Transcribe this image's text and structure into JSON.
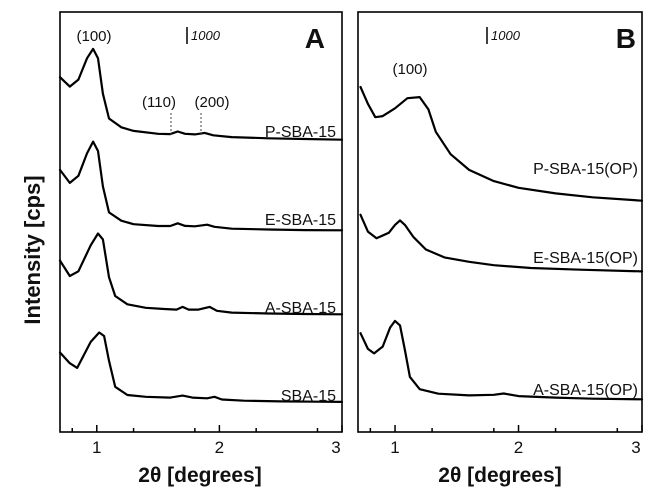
{
  "figure": {
    "ylabel": "Intensity [cps]",
    "scale_bar_label": "1000"
  },
  "chart_data": [
    {
      "panel": "A",
      "type": "line",
      "xlabel": "2θ [degrees]",
      "ylabel": "Intensity [cps]",
      "xlim": [
        0.7,
        3.0
      ],
      "x_ticks": [
        "1",
        "2",
        "3"
      ],
      "y_ticks": "none",
      "panel_label": "A",
      "scale_bar_label": "1000",
      "peak_labels": [
        "(100)",
        "(110)",
        "(200)"
      ],
      "series": [
        {
          "name": "P-SBA-15",
          "points": [
            [
              0.7,
              600
            ],
            [
              0.78,
              520
            ],
            [
              0.85,
              580
            ],
            [
              0.92,
              760
            ],
            [
              0.97,
              840
            ],
            [
              1.01,
              760
            ],
            [
              1.05,
              460
            ],
            [
              1.1,
              250
            ],
            [
              1.2,
              175
            ],
            [
              1.3,
              145
            ],
            [
              1.5,
              120
            ],
            [
              1.6,
              118
            ],
            [
              1.66,
              140
            ],
            [
              1.72,
              120
            ],
            [
              1.8,
              115
            ],
            [
              1.88,
              128
            ],
            [
              1.95,
              108
            ],
            [
              2.1,
              92
            ],
            [
              2.4,
              82
            ],
            [
              2.7,
              76
            ],
            [
              3.0,
              70
            ]
          ]
        },
        {
          "name": "E-SBA-15",
          "points": [
            [
              0.7,
              560
            ],
            [
              0.78,
              450
            ],
            [
              0.85,
              510
            ],
            [
              0.92,
              700
            ],
            [
              0.97,
              800
            ],
            [
              1.01,
              720
            ],
            [
              1.05,
              420
            ],
            [
              1.1,
              200
            ],
            [
              1.2,
              130
            ],
            [
              1.3,
              100
            ],
            [
              1.5,
              85
            ],
            [
              1.6,
              85
            ],
            [
              1.66,
              108
            ],
            [
              1.72,
              86
            ],
            [
              1.8,
              82
            ],
            [
              1.9,
              96
            ],
            [
              1.96,
              78
            ],
            [
              2.1,
              62
            ],
            [
              2.4,
              55
            ],
            [
              2.7,
              50
            ],
            [
              3.0,
              48
            ]
          ]
        },
        {
          "name": "A-SBA-15",
          "points": [
            [
              0.7,
              520
            ],
            [
              0.78,
              390
            ],
            [
              0.85,
              430
            ],
            [
              0.95,
              650
            ],
            [
              1.01,
              750
            ],
            [
              1.05,
              700
            ],
            [
              1.1,
              380
            ],
            [
              1.15,
              220
            ],
            [
              1.25,
              150
            ],
            [
              1.4,
              120
            ],
            [
              1.55,
              110
            ],
            [
              1.65,
              105
            ],
            [
              1.7,
              128
            ],
            [
              1.75,
              105
            ],
            [
              1.83,
              105
            ],
            [
              1.92,
              128
            ],
            [
              1.98,
              95
            ],
            [
              2.1,
              80
            ],
            [
              2.4,
              72
            ],
            [
              2.7,
              68
            ],
            [
              3.0,
              65
            ]
          ]
        },
        {
          "name": "SBA-15",
          "points": [
            [
              0.7,
              470
            ],
            [
              0.78,
              380
            ],
            [
              0.84,
              340
            ],
            [
              0.95,
              560
            ],
            [
              1.02,
              640
            ],
            [
              1.06,
              610
            ],
            [
              1.1,
              400
            ],
            [
              1.15,
              180
            ],
            [
              1.25,
              110
            ],
            [
              1.4,
              95
            ],
            [
              1.6,
              88
            ],
            [
              1.7,
              105
            ],
            [
              1.78,
              88
            ],
            [
              1.9,
              82
            ],
            [
              1.96,
              95
            ],
            [
              2.02,
              72
            ],
            [
              2.2,
              62
            ],
            [
              2.5,
              56
            ],
            [
              2.8,
              53
            ],
            [
              3.0,
              52
            ]
          ]
        }
      ],
      "series_label_text": [
        "P-SBA-15",
        "E-SBA-15",
        "A-SBA-15",
        "SBA-15"
      ]
    },
    {
      "panel": "B",
      "type": "line",
      "xlabel": "2θ [degrees]",
      "xlim": [
        0.7,
        3.0
      ],
      "x_ticks": [
        "1",
        "2",
        "3"
      ],
      "y_ticks": "none",
      "panel_label": "B",
      "scale_bar_label": "1000",
      "peak_labels": [
        "(100)"
      ],
      "series": [
        {
          "name": "P-SBA-15(OP)",
          "points": [
            [
              0.72,
              1250
            ],
            [
              0.78,
              1100
            ],
            [
              0.84,
              980
            ],
            [
              0.9,
              990
            ],
            [
              1.0,
              1060
            ],
            [
              1.1,
              1150
            ],
            [
              1.2,
              1160
            ],
            [
              1.27,
              1050
            ],
            [
              1.33,
              850
            ],
            [
              1.45,
              650
            ],
            [
              1.6,
              510
            ],
            [
              1.8,
              410
            ],
            [
              2.0,
              350
            ],
            [
              2.3,
              300
            ],
            [
              2.6,
              265
            ],
            [
              3.0,
              235
            ]
          ]
        },
        {
          "name": "E-SBA-15(OP)",
          "points": [
            [
              0.72,
              850
            ],
            [
              0.78,
              700
            ],
            [
              0.85,
              640
            ],
            [
              0.95,
              690
            ],
            [
              1.0,
              760
            ],
            [
              1.04,
              800
            ],
            [
              1.08,
              760
            ],
            [
              1.15,
              650
            ],
            [
              1.25,
              540
            ],
            [
              1.4,
              470
            ],
            [
              1.6,
              430
            ],
            [
              1.8,
              400
            ],
            [
              2.1,
              375
            ],
            [
              2.5,
              360
            ],
            [
              3.0,
              345
            ]
          ]
        },
        {
          "name": "A-SBA-15(OP)",
          "points": [
            [
              0.72,
              650
            ],
            [
              0.78,
              510
            ],
            [
              0.83,
              470
            ],
            [
              0.9,
              530
            ],
            [
              0.96,
              700
            ],
            [
              1.0,
              760
            ],
            [
              1.04,
              720
            ],
            [
              1.08,
              500
            ],
            [
              1.12,
              260
            ],
            [
              1.2,
              150
            ],
            [
              1.35,
              110
            ],
            [
              1.6,
              95
            ],
            [
              1.8,
              100
            ],
            [
              1.88,
              112
            ],
            [
              2.0,
              88
            ],
            [
              2.3,
              75
            ],
            [
              2.6,
              65
            ],
            [
              3.0,
              60
            ]
          ]
        }
      ],
      "series_label_text": [
        "P-SBA-15(OP)",
        "E-SBA-15(OP)",
        "A-SBA-15(OP)"
      ]
    }
  ]
}
